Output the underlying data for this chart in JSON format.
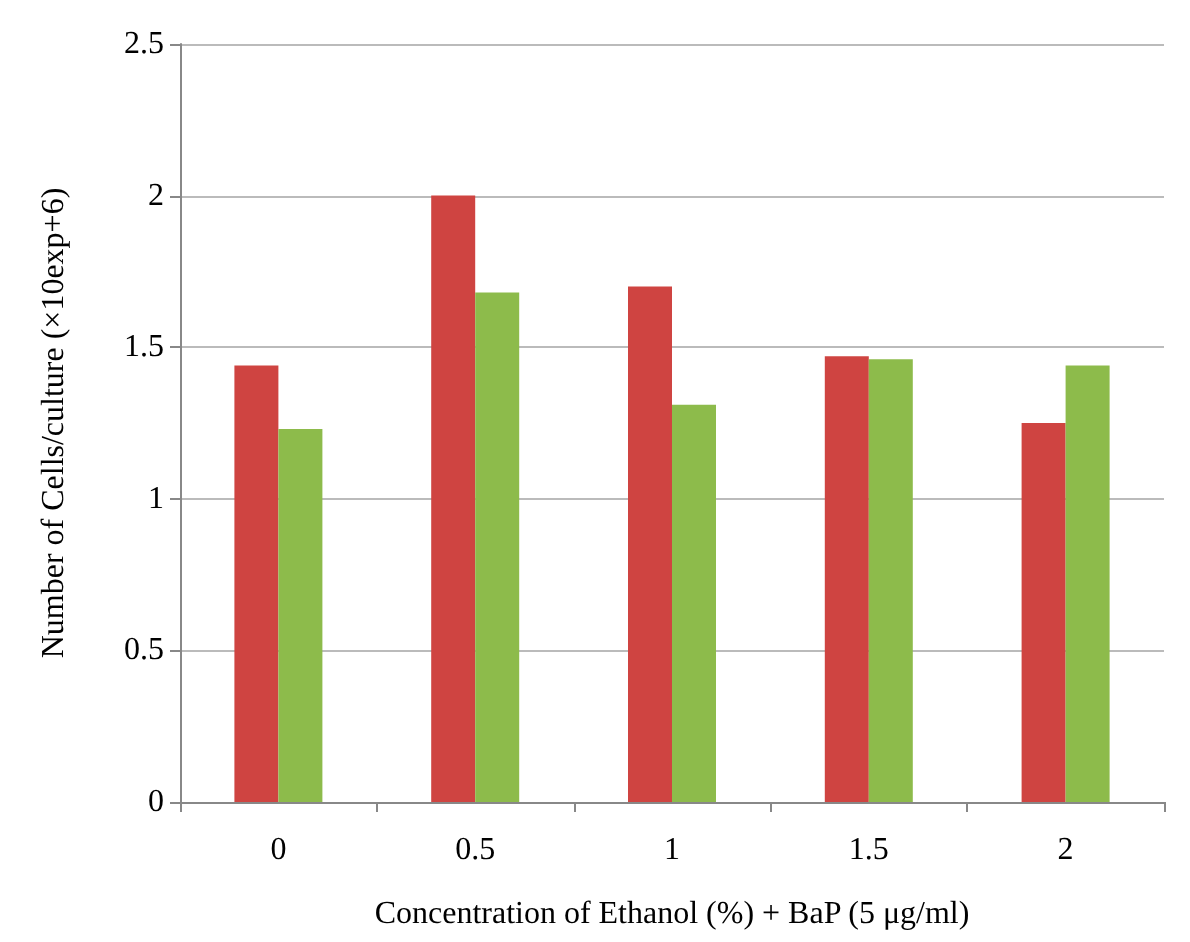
{
  "chart_data": {
    "type": "bar",
    "xlabel": "Concentration of Ethanol (%) + BaP (5 μg/ml)",
    "ylabel": "Number of Cells/culture (×10exp+6)",
    "categories": [
      "0",
      "0.5",
      "1",
      "1.5",
      "2"
    ],
    "series": [
      {
        "color": "#cf4441",
        "values": [
          1.44,
          2.0,
          1.7,
          1.47,
          1.25
        ]
      },
      {
        "color": "#8dbb4b",
        "values": [
          1.23,
          1.68,
          1.31,
          1.46,
          1.44
        ]
      }
    ],
    "ylim": [
      0,
      2.5
    ],
    "yticks": [
      0,
      0.5,
      1,
      1.5,
      2,
      2.5
    ],
    "grid": "y"
  }
}
